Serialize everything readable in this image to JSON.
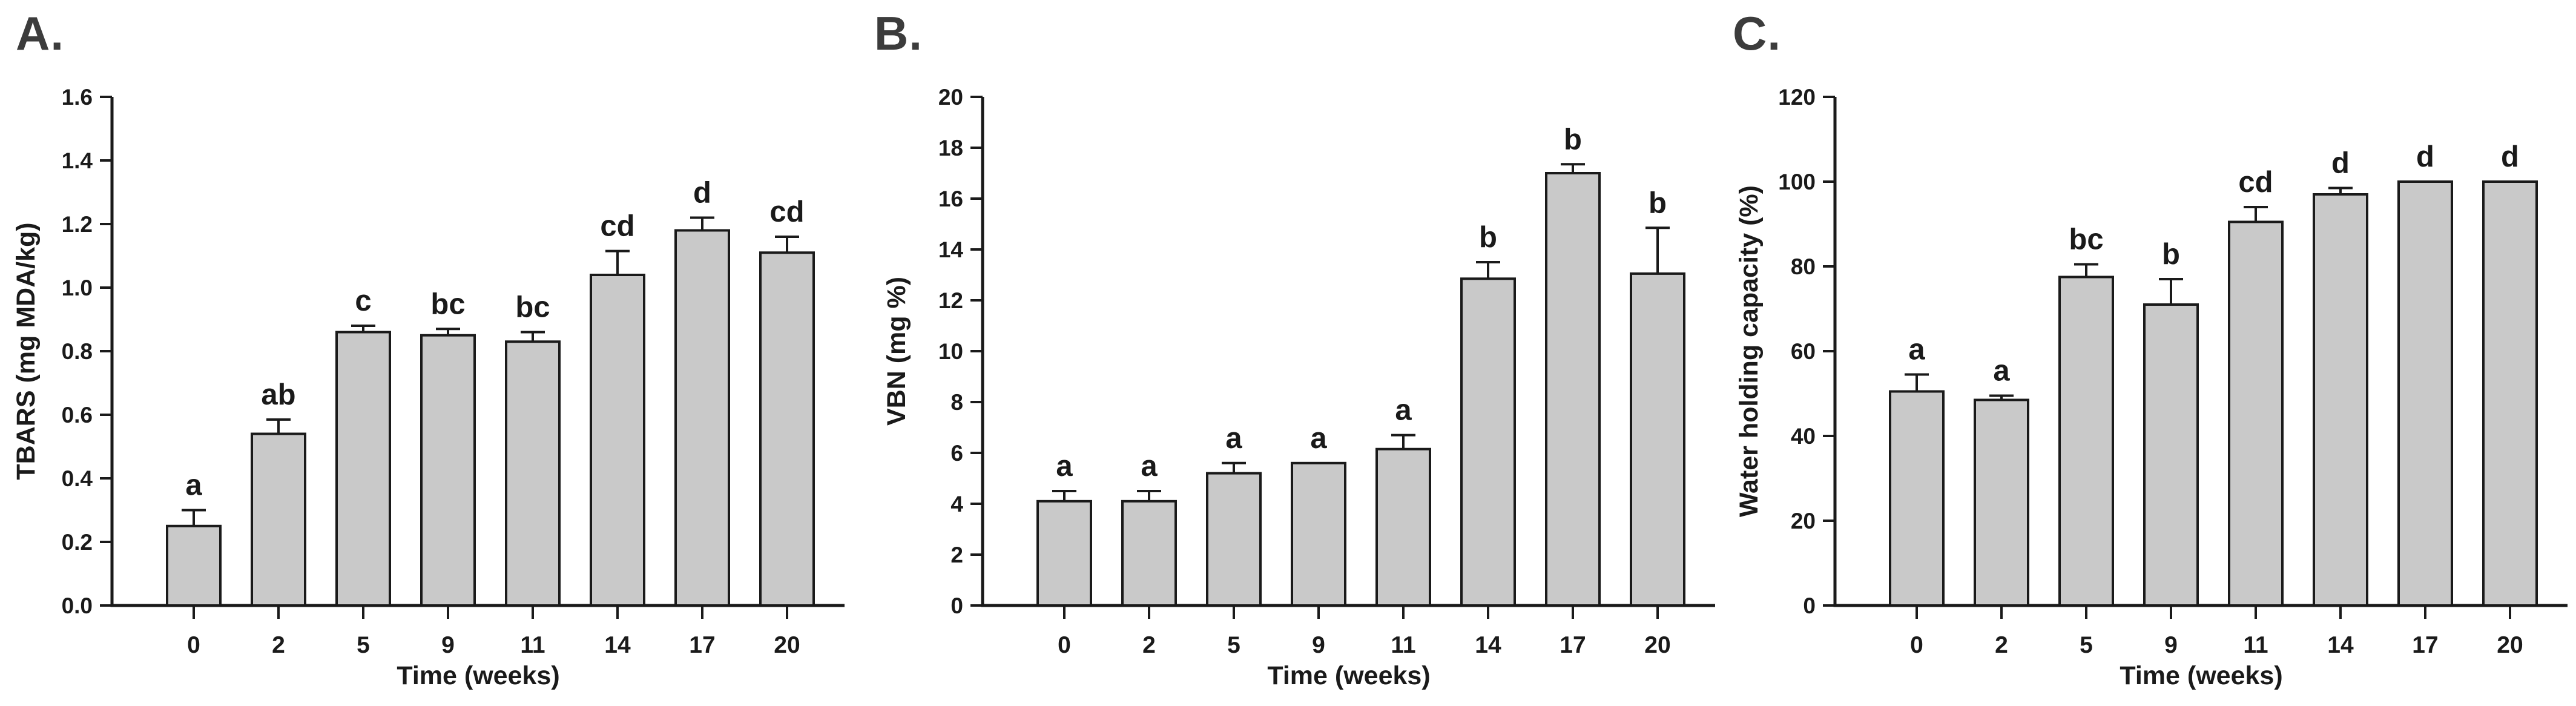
{
  "figure": {
    "background": "#ffffff",
    "bar_fill": "#c9c9c9",
    "bar_stroke": "#1a1a1a",
    "axis_color": "#1a1a1a",
    "panel_label_color": "#3c3c3c"
  },
  "chart_data": [
    {
      "type": "bar",
      "panel_label": "A.",
      "xlabel": "Time (weeks)",
      "ylabel": "TBARS (mg MDA/kg)",
      "categories": [
        "0",
        "2",
        "5",
        "9",
        "11",
        "14",
        "17",
        "20"
      ],
      "values": [
        0.25,
        0.54,
        0.86,
        0.85,
        0.83,
        1.04,
        1.18,
        1.11
      ],
      "errors": [
        0.05,
        0.045,
        0.02,
        0.02,
        0.03,
        0.075,
        0.04,
        0.05
      ],
      "sig_letters": [
        "a",
        "ab",
        "c",
        "bc",
        "bc",
        "cd",
        "d",
        "cd"
      ],
      "ylim": [
        0,
        1.6
      ],
      "ytick_step": 0.2,
      "ytick_decimals": 1,
      "grid": false,
      "legend": null
    },
    {
      "type": "bar",
      "panel_label": "B.",
      "xlabel": "Time (weeks)",
      "ylabel": "VBN (mg %)",
      "categories": [
        "0",
        "2",
        "5",
        "9",
        "11",
        "14",
        "17",
        "20"
      ],
      "values": [
        4.1,
        4.1,
        5.2,
        5.6,
        6.15,
        12.85,
        17.0,
        13.05
      ],
      "errors": [
        0.4,
        0.4,
        0.4,
        0,
        0.55,
        0.65,
        0.35,
        1.8
      ],
      "sig_letters": [
        "a",
        "a",
        "a",
        "a",
        "a",
        "b",
        "b",
        "b"
      ],
      "ylim": [
        0,
        20
      ],
      "ytick_step": 2,
      "ytick_decimals": 0,
      "grid": false,
      "legend": null
    },
    {
      "type": "bar",
      "panel_label": "C.",
      "xlabel": "Time (weeks)",
      "ylabel": "Water holding capacity (%)",
      "categories": [
        "0",
        "2",
        "5",
        "9",
        "11",
        "14",
        "17",
        "20"
      ],
      "values": [
        50.5,
        48.5,
        77.5,
        71,
        90.5,
        97,
        100,
        100
      ],
      "errors": [
        4,
        1,
        3,
        6,
        3.5,
        1.5,
        0,
        0
      ],
      "sig_letters": [
        "a",
        "a",
        "bc",
        "b",
        "cd",
        "d",
        "d",
        "d"
      ],
      "ylim": [
        0,
        120
      ],
      "ytick_step": 20,
      "ytick_decimals": 0,
      "grid": false,
      "legend": null
    }
  ]
}
